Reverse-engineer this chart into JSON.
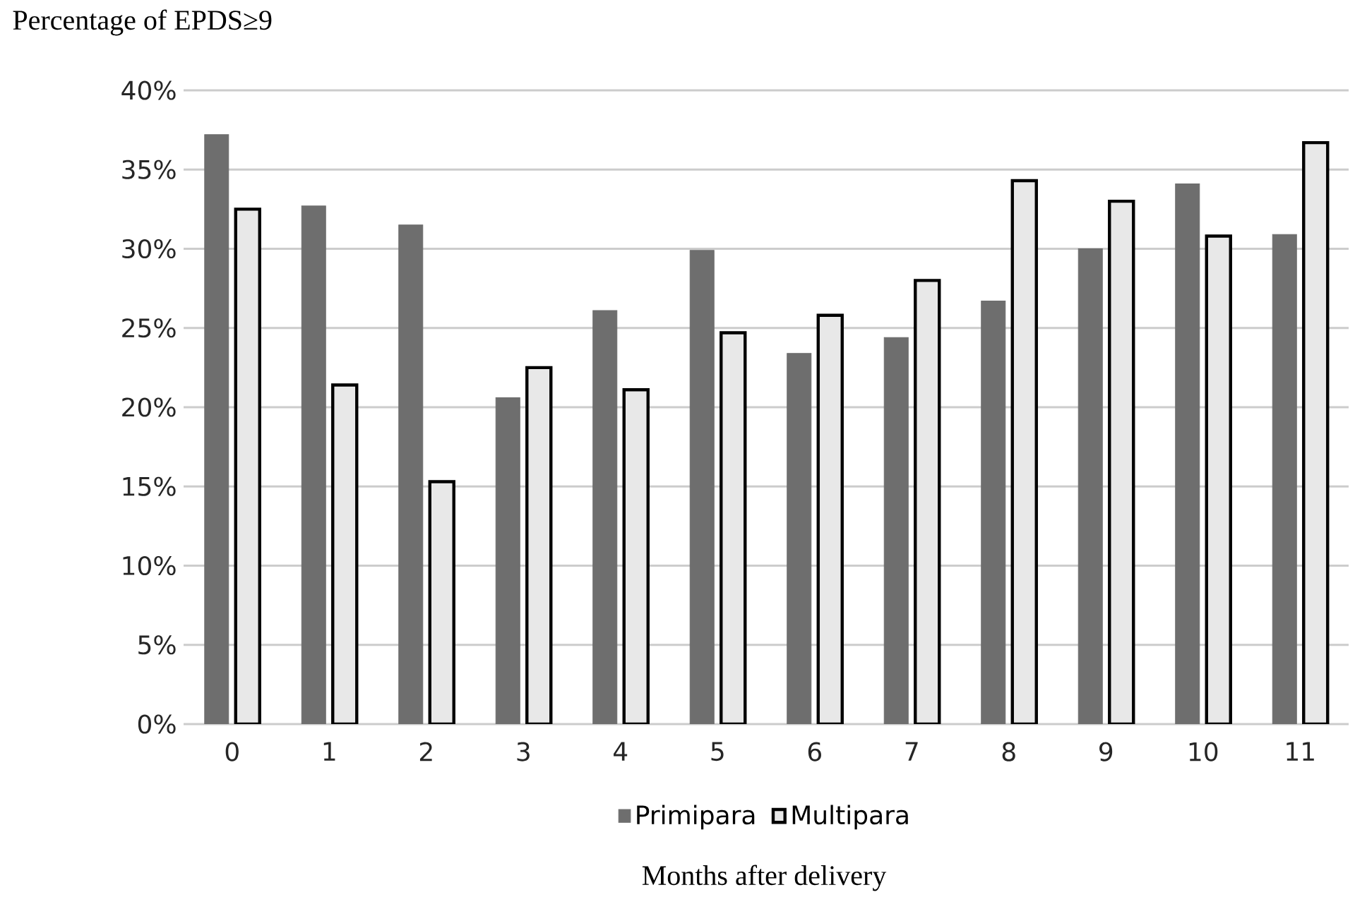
{
  "chart_data": {
    "type": "bar",
    "xlabel": "Months after delivery",
    "ylabel": "Percentage of EPDS≥9",
    "categories": [
      "0",
      "1",
      "2",
      "3",
      "4",
      "5",
      "6",
      "7",
      "8",
      "9",
      "10",
      "11"
    ],
    "series": [
      {
        "name": "Primipara",
        "color": "#6e6e6e",
        "values": [
          37.2,
          32.7,
          31.5,
          20.6,
          26.1,
          29.9,
          23.4,
          24.4,
          26.7,
          30.0,
          34.1,
          30.9
        ]
      },
      {
        "name": "Multipara",
        "color": "#e8e8e8",
        "values": [
          32.5,
          21.4,
          15.3,
          22.5,
          21.1,
          24.7,
          25.8,
          28.0,
          34.3,
          33.0,
          30.8,
          36.7
        ]
      }
    ],
    "ylim": [
      0,
      40
    ],
    "yticks": [
      {
        "value": 0,
        "label": "0%"
      },
      {
        "value": 5,
        "label": "5%"
      },
      {
        "value": 10,
        "label": "10%"
      },
      {
        "value": 15,
        "label": "15%"
      },
      {
        "value": 20,
        "label": "20%"
      },
      {
        "value": 25,
        "label": "25%"
      },
      {
        "value": 30,
        "label": "30%"
      },
      {
        "value": 35,
        "label": "35%"
      },
      {
        "value": 40,
        "label": "40%"
      }
    ],
    "grid": "y",
    "legend": "bottom"
  }
}
